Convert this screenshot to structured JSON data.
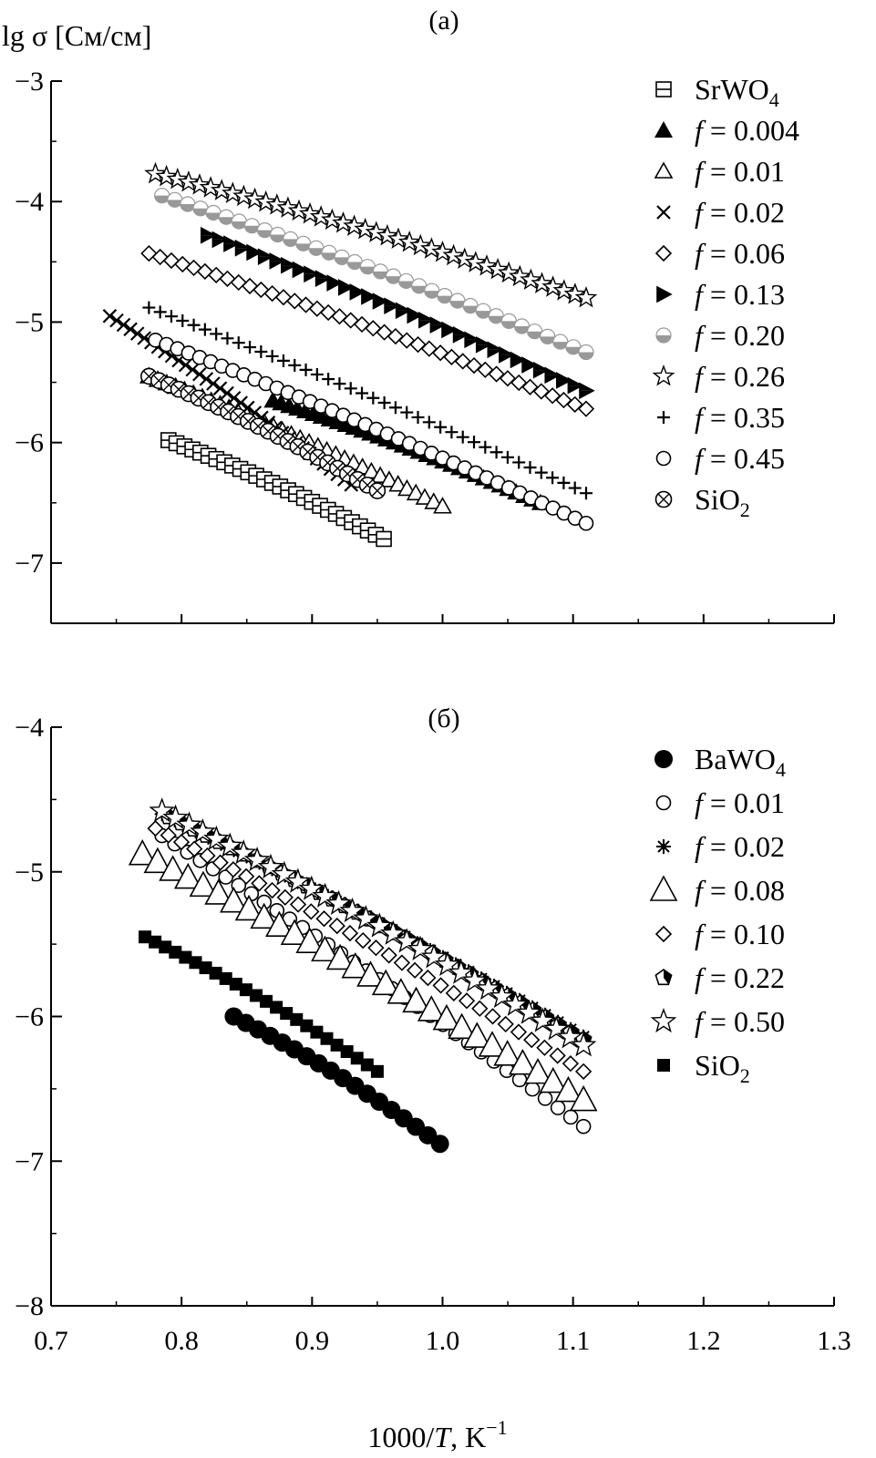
{
  "chart_data": [
    {
      "type": "scatter",
      "panel_label": "(a)",
      "ylabel": "lg σ [См/см]",
      "xlim": [
        0.7,
        1.3
      ],
      "ylim": [
        -7.5,
        -3
      ],
      "xticks": [
        "0.8",
        "0.9",
        "1.0",
        "1.1",
        "1.2"
      ],
      "yticks": [
        "−3",
        "−4",
        "−5",
        "−6",
        "−7"
      ],
      "y_tick_values": [
        -3,
        -4,
        -5,
        -6,
        -7
      ],
      "legend_position": "top-right",
      "series": [
        {
          "name": "SrWO4",
          "marker": "square-cross",
          "x_range": [
            0.79,
            0.955
          ],
          "y_range": [
            -5.98,
            -6.8
          ],
          "points": 28
        },
        {
          "name": "f = 0.004",
          "marker": "filled-triangle",
          "x_range": [
            0.87,
            1.075
          ],
          "y_range": [
            -5.65,
            -6.5
          ],
          "points": 34
        },
        {
          "name": "f = 0.01",
          "marker": "open-triangle",
          "x_range": [
            0.775,
            1.0
          ],
          "y_range": [
            -5.45,
            -6.53
          ],
          "points": 34
        },
        {
          "name": "f = 0.02",
          "marker": "x",
          "x_range": [
            0.745,
            0.93
          ],
          "y_range": [
            -4.95,
            -6.35
          ],
          "points": 36
        },
        {
          "name": "f = 0.06",
          "marker": "open-diamond",
          "x_range": [
            0.775,
            1.11
          ],
          "y_range": [
            -4.43,
            -5.72
          ],
          "points": 40
        },
        {
          "name": "f = 0.13",
          "marker": "half-triangle",
          "x_range": [
            0.82,
            1.11
          ],
          "y_range": [
            -4.28,
            -5.57
          ],
          "points": 34
        },
        {
          "name": "f = 0.20",
          "marker": "half-circle",
          "x_range": [
            0.785,
            1.11
          ],
          "y_range": [
            -3.95,
            -5.25
          ],
          "points": 34
        },
        {
          "name": "f = 0.26",
          "marker": "open-star",
          "x_range": [
            0.78,
            1.11
          ],
          "y_range": [
            -3.77,
            -4.8
          ],
          "points": 40
        },
        {
          "name": "f = 0.35",
          "marker": "plus",
          "x_range": [
            0.775,
            1.11
          ],
          "y_range": [
            -4.88,
            -6.42
          ],
          "points": 40
        },
        {
          "name": "f = 0.45",
          "marker": "open-circle",
          "x_range": [
            0.78,
            1.11
          ],
          "y_range": [
            -5.15,
            -6.67
          ],
          "points": 40
        },
        {
          "name": "SiO2",
          "marker": "circle-x",
          "x_range": [
            0.775,
            0.95
          ],
          "y_range": [
            -5.45,
            -6.4
          ],
          "points": 24
        }
      ],
      "legend": [
        {
          "text": "SrWO",
          "sub": "4"
        },
        {
          "text": "f",
          "value": " = 0.004"
        },
        {
          "text": "f",
          "value": " = 0.01"
        },
        {
          "text": "f",
          "value": " = 0.02"
        },
        {
          "text": "f",
          "value": " = 0.06"
        },
        {
          "text": "f",
          "value": " = 0.13"
        },
        {
          "text": "f",
          "value": " = 0.20"
        },
        {
          "text": "f",
          "value": " = 0.26"
        },
        {
          "text": "f",
          "value": " = 0.35"
        },
        {
          "text": "f",
          "value": " = 0.45"
        },
        {
          "text": "SiO",
          "sub": "2"
        }
      ]
    },
    {
      "type": "scatter",
      "panel_label": "(б)",
      "xlabel_italic": "T",
      "xlabel_prefix": "1000/",
      "xlabel_suffix": ", K",
      "xlabel_sup": "−1",
      "xlim": [
        0.7,
        1.3
      ],
      "ylim": [
        -8,
        -4
      ],
      "xticks": [
        "0.7",
        "0.8",
        "0.9",
        "1.0",
        "1.1",
        "1.2",
        "1.3"
      ],
      "x_tick_values": [
        0.7,
        0.8,
        0.9,
        1.0,
        1.1,
        1.2,
        1.3
      ],
      "yticks": [
        "−4",
        "−5",
        "−6",
        "−7",
        "−8"
      ],
      "y_tick_values": [
        -4,
        -5,
        -6,
        -7,
        -8
      ],
      "legend_position": "top-right",
      "series": [
        {
          "name": "BaWO4",
          "marker": "filled-circle",
          "x_range": [
            0.84,
            0.998
          ],
          "y_range": [
            -6.0,
            -6.88
          ],
          "points": 18
        },
        {
          "name": "f = 0.01",
          "marker": "open-circle",
          "x_range": [
            0.785,
            1.108
          ],
          "y_range": [
            -4.75,
            -6.76
          ],
          "points": 34
        },
        {
          "name": "f = 0.02",
          "marker": "asterisk",
          "x_range": [
            0.785,
            1.108
          ],
          "y_range": [
            -4.6,
            -6.14
          ],
          "points": 34
        },
        {
          "name": "f = 0.08",
          "marker": "open-triangle-large",
          "x_range": [
            0.77,
            1.108
          ],
          "y_range": [
            -4.88,
            -6.58
          ],
          "points": 30
        },
        {
          "name": "f = 0.10",
          "marker": "open-diamond",
          "x_range": [
            0.78,
            1.108
          ],
          "y_range": [
            -4.7,
            -6.38
          ],
          "points": 34
        },
        {
          "name": "f = 0.22",
          "marker": "pentagon",
          "x_range": [
            0.79,
            1.108
          ],
          "y_range": [
            -4.62,
            -6.16
          ],
          "points": 34
        },
        {
          "name": "f = 0.50",
          "marker": "open-star-large",
          "x_range": [
            0.785,
            1.108
          ],
          "y_range": [
            -4.58,
            -6.2
          ],
          "points": 32
        },
        {
          "name": "SiO2",
          "marker": "filled-square",
          "x_range": [
            0.772,
            0.95
          ],
          "y_range": [
            -5.45,
            -6.38
          ],
          "points": 24
        }
      ],
      "legend": [
        {
          "text": "BaWO",
          "sub": "4"
        },
        {
          "text": "f",
          "value": " = 0.01"
        },
        {
          "text": "f",
          "value": " = 0.02"
        },
        {
          "text": "f",
          "value": " = 0.08"
        },
        {
          "text": "f",
          "value": " = 0.10"
        },
        {
          "text": "f",
          "value": " = 0.22"
        },
        {
          "text": "f",
          "value": " = 0.50"
        },
        {
          "text": "SiO",
          "sub": "2"
        }
      ]
    }
  ]
}
